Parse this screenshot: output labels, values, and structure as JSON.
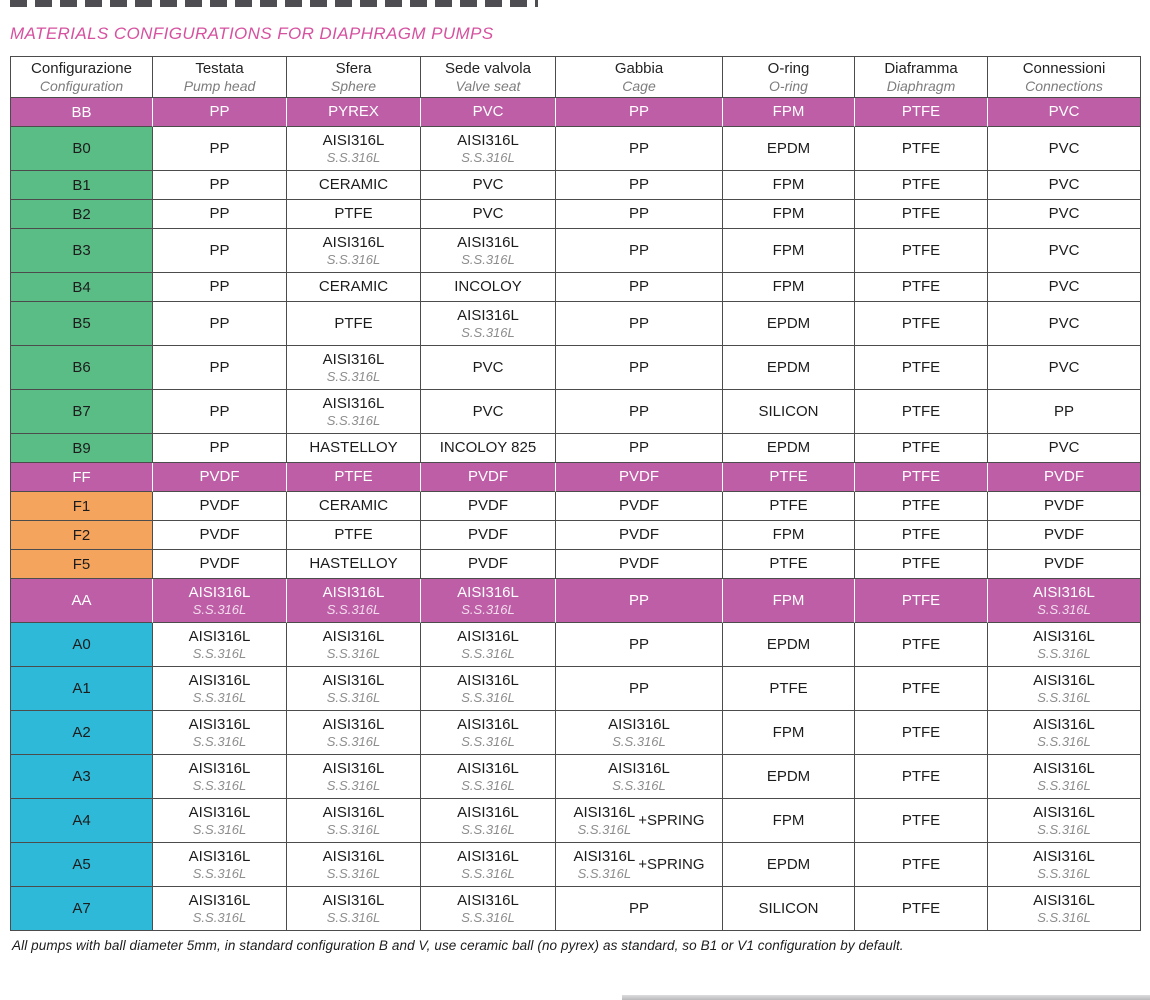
{
  "page": {
    "title": "MATERIALS CONFIGURATIONS FOR DIAPHRAGM PUMPS",
    "footnote": "All pumps with ball diameter 5mm, in standard configuration B and V, use ceramic ball (no pyrex) as standard, so B1 or V1 configuration by default."
  },
  "colors": {
    "magenta": "#bd5ea6",
    "green": "#5bbd86",
    "orange": "#f5a45e",
    "cyan": "#2fb9d8",
    "title": "#d6519f",
    "line": "#4c4c4c"
  },
  "table": {
    "columns": [
      {
        "it": "Configurazione",
        "en": "Configuration"
      },
      {
        "it": "Testata",
        "en": "Pump head"
      },
      {
        "it": "Sfera",
        "en": "Sphere"
      },
      {
        "it": "Sede valvola",
        "en": "Valve seat"
      },
      {
        "it": "Gabbia",
        "en": "Cage"
      },
      {
        "it": "O-ring",
        "en": "O-ring"
      },
      {
        "it": "Diaframma",
        "en": "Diaphragm"
      },
      {
        "it": "Connessioni",
        "en": "Connections"
      }
    ],
    "rows": [
      {
        "config": "BB",
        "style": "magenta",
        "cells": [
          [
            "PP"
          ],
          [
            "PYREX"
          ],
          [
            "PVC"
          ],
          [
            "PP"
          ],
          [
            "FPM"
          ],
          [
            "PTFE"
          ],
          [
            "PVC"
          ]
        ]
      },
      {
        "config": "B0",
        "style": "green",
        "cells": [
          [
            "PP"
          ],
          [
            "AISI316L",
            "S.S.316L"
          ],
          [
            "AISI316L",
            "S.S.316L"
          ],
          [
            "PP"
          ],
          [
            "EPDM"
          ],
          [
            "PTFE"
          ],
          [
            "PVC"
          ]
        ]
      },
      {
        "config": "B1",
        "style": "green",
        "cells": [
          [
            "PP"
          ],
          [
            "CERAMIC"
          ],
          [
            "PVC"
          ],
          [
            "PP"
          ],
          [
            "FPM"
          ],
          [
            "PTFE"
          ],
          [
            "PVC"
          ]
        ]
      },
      {
        "config": "B2",
        "style": "green",
        "cells": [
          [
            "PP"
          ],
          [
            "PTFE"
          ],
          [
            "PVC"
          ],
          [
            "PP"
          ],
          [
            "FPM"
          ],
          [
            "PTFE"
          ],
          [
            "PVC"
          ]
        ]
      },
      {
        "config": "B3",
        "style": "green",
        "cells": [
          [
            "PP"
          ],
          [
            "AISI316L",
            "S.S.316L"
          ],
          [
            "AISI316L",
            "S.S.316L"
          ],
          [
            "PP"
          ],
          [
            "FPM"
          ],
          [
            "PTFE"
          ],
          [
            "PVC"
          ]
        ]
      },
      {
        "config": "B4",
        "style": "green",
        "cells": [
          [
            "PP"
          ],
          [
            "CERAMIC"
          ],
          [
            "INCOLOY"
          ],
          [
            "PP"
          ],
          [
            "FPM"
          ],
          [
            "PTFE"
          ],
          [
            "PVC"
          ]
        ]
      },
      {
        "config": "B5",
        "style": "green",
        "cells": [
          [
            "PP"
          ],
          [
            "PTFE"
          ],
          [
            "AISI316L",
            "S.S.316L"
          ],
          [
            "PP"
          ],
          [
            "EPDM"
          ],
          [
            "PTFE"
          ],
          [
            "PVC"
          ]
        ]
      },
      {
        "config": "B6",
        "style": "green",
        "cells": [
          [
            "PP"
          ],
          [
            "AISI316L",
            "S.S.316L"
          ],
          [
            "PVC"
          ],
          [
            "PP"
          ],
          [
            "EPDM"
          ],
          [
            "PTFE"
          ],
          [
            "PVC"
          ]
        ]
      },
      {
        "config": "B7",
        "style": "green",
        "cells": [
          [
            "PP"
          ],
          [
            "AISI316L",
            "S.S.316L"
          ],
          [
            "PVC"
          ],
          [
            "PP"
          ],
          [
            "SILICON"
          ],
          [
            "PTFE"
          ],
          [
            "PP"
          ]
        ]
      },
      {
        "config": "B9",
        "style": "green",
        "cells": [
          [
            "PP"
          ],
          [
            "HASTELLOY"
          ],
          [
            "INCOLOY 825"
          ],
          [
            "PP"
          ],
          [
            "EPDM"
          ],
          [
            "PTFE"
          ],
          [
            "PVC"
          ]
        ]
      },
      {
        "config": "FF",
        "style": "magenta",
        "cells": [
          [
            "PVDF"
          ],
          [
            "PTFE"
          ],
          [
            "PVDF"
          ],
          [
            "PVDF"
          ],
          [
            "PTFE"
          ],
          [
            "PTFE"
          ],
          [
            "PVDF"
          ]
        ]
      },
      {
        "config": "F1",
        "style": "orange",
        "cells": [
          [
            "PVDF"
          ],
          [
            "CERAMIC"
          ],
          [
            "PVDF"
          ],
          [
            "PVDF"
          ],
          [
            "PTFE"
          ],
          [
            "PTFE"
          ],
          [
            "PVDF"
          ]
        ]
      },
      {
        "config": "F2",
        "style": "orange",
        "cells": [
          [
            "PVDF"
          ],
          [
            "PTFE"
          ],
          [
            "PVDF"
          ],
          [
            "PVDF"
          ],
          [
            "FPM"
          ],
          [
            "PTFE"
          ],
          [
            "PVDF"
          ]
        ]
      },
      {
        "config": "F5",
        "style": "orange",
        "cells": [
          [
            "PVDF"
          ],
          [
            "HASTELLOY"
          ],
          [
            "PVDF"
          ],
          [
            "PVDF"
          ],
          [
            "PTFE"
          ],
          [
            "PTFE"
          ],
          [
            "PVDF"
          ]
        ]
      },
      {
        "config": "AA",
        "style": "magenta",
        "cells": [
          [
            "AISI316L",
            "S.S.316L"
          ],
          [
            "AISI316L",
            "S.S.316L"
          ],
          [
            "AISI316L",
            "S.S.316L"
          ],
          [
            "PP"
          ],
          [
            "FPM"
          ],
          [
            "PTFE"
          ],
          [
            "AISI316L",
            "S.S.316L"
          ]
        ]
      },
      {
        "config": "A0",
        "style": "cyan",
        "cells": [
          [
            "AISI316L",
            "S.S.316L"
          ],
          [
            "AISI316L",
            "S.S.316L"
          ],
          [
            "AISI316L",
            "S.S.316L"
          ],
          [
            "PP"
          ],
          [
            "EPDM"
          ],
          [
            "PTFE"
          ],
          [
            "AISI316L",
            "S.S.316L"
          ]
        ]
      },
      {
        "config": "A1",
        "style": "cyan",
        "cells": [
          [
            "AISI316L",
            "S.S.316L"
          ],
          [
            "AISI316L",
            "S.S.316L"
          ],
          [
            "AISI316L",
            "S.S.316L"
          ],
          [
            "PP"
          ],
          [
            "PTFE"
          ],
          [
            "PTFE"
          ],
          [
            "AISI316L",
            "S.S.316L"
          ]
        ]
      },
      {
        "config": "A2",
        "style": "cyan",
        "cells": [
          [
            "AISI316L",
            "S.S.316L"
          ],
          [
            "AISI316L",
            "S.S.316L"
          ],
          [
            "AISI316L",
            "S.S.316L"
          ],
          [
            "AISI316L",
            "S.S.316L"
          ],
          [
            "FPM"
          ],
          [
            "PTFE"
          ],
          [
            "AISI316L",
            "S.S.316L"
          ]
        ]
      },
      {
        "config": "A3",
        "style": "cyan",
        "cells": [
          [
            "AISI316L",
            "S.S.316L"
          ],
          [
            "AISI316L",
            "S.S.316L"
          ],
          [
            "AISI316L",
            "S.S.316L"
          ],
          [
            "AISI316L",
            "S.S.316L"
          ],
          [
            "EPDM"
          ],
          [
            "PTFE"
          ],
          [
            "AISI316L",
            "S.S.316L"
          ]
        ]
      },
      {
        "config": "A4",
        "style": "cyan",
        "cells": [
          [
            "AISI316L",
            "S.S.316L"
          ],
          [
            "AISI316L",
            "S.S.316L"
          ],
          [
            "AISI316L",
            "S.S.316L"
          ],
          {
            "lines": [
              "AISI316L",
              "S.S.316L"
            ],
            "suffix": "+SPRING"
          },
          [
            "FPM"
          ],
          [
            "PTFE"
          ],
          [
            "AISI316L",
            "S.S.316L"
          ]
        ]
      },
      {
        "config": "A5",
        "style": "cyan",
        "cells": [
          [
            "AISI316L",
            "S.S.316L"
          ],
          [
            "AISI316L",
            "S.S.316L"
          ],
          [
            "AISI316L",
            "S.S.316L"
          ],
          {
            "lines": [
              "AISI316L",
              "S.S.316L"
            ],
            "suffix": "+SPRING"
          },
          [
            "EPDM"
          ],
          [
            "PTFE"
          ],
          [
            "AISI316L",
            "S.S.316L"
          ]
        ]
      },
      {
        "config": "A7",
        "style": "cyan",
        "cells": [
          [
            "AISI316L",
            "S.S.316L"
          ],
          [
            "AISI316L",
            "S.S.316L"
          ],
          [
            "AISI316L",
            "S.S.316L"
          ],
          [
            "PP"
          ],
          [
            "SILICON"
          ],
          [
            "PTFE"
          ],
          [
            "AISI316L",
            "S.S.316L"
          ]
        ]
      }
    ]
  }
}
